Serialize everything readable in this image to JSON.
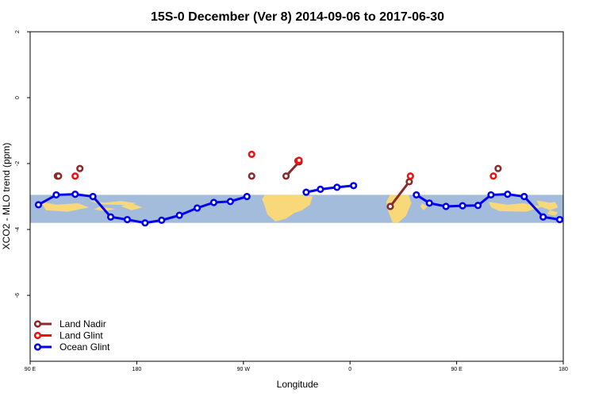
{
  "chart_data": {
    "type": "line",
    "title": "15S-0 December (Ver 8)   2014-09-06 to 2017-06-30",
    "xlabel": "Longitude",
    "ylabel": "XCO2 - MLO trend (ppm)",
    "xlim": [
      90,
      540
    ],
    "ylim": [
      -8,
      2
    ],
    "x_ticks": [
      {
        "value": 90,
        "label": "90 E"
      },
      {
        "value": 180,
        "label": "180"
      },
      {
        "value": 270,
        "label": "90 W"
      },
      {
        "value": 360,
        "label": "0"
      },
      {
        "value": 450,
        "label": "90 E"
      },
      {
        "value": 540,
        "label": "180"
      }
    ],
    "y_ticks": [
      {
        "value": 2,
        "label": "2"
      },
      {
        "value": 0,
        "label": "0"
      },
      {
        "value": -2,
        "label": "-2"
      },
      {
        "value": -4,
        "label": "-4"
      },
      {
        "value": -6,
        "label": "-6"
      }
    ],
    "legend_position": "bottom-left",
    "map_band": {
      "y_top": -2.95,
      "y_bottom": -3.8,
      "ocean_color": "#a4bcdc",
      "land_color": "#f8d878"
    },
    "series": [
      {
        "name": "Land Nadir",
        "color": "#8b2a2a",
        "segments": [
          [
            [
              132,
              -2.15
            ]
          ],
          [
            [
              277,
              -2.38
            ]
          ],
          [
            [
              306,
              -2.38
            ],
            [
              317,
              -1.95
            ]
          ],
          [
            [
              113,
              -2.38
            ]
          ],
          [
            [
              114,
              -2.38
            ]
          ],
          [
            [
              394,
              -3.3
            ],
            [
              410,
              -2.55
            ]
          ],
          [
            [
              485,
              -2.15
            ]
          ]
        ]
      },
      {
        "name": "Land Glint",
        "color": "#ee1111",
        "segments": [
          [
            [
              128,
              -2.38
            ]
          ],
          [
            [
              277,
              -1.72
            ]
          ],
          [
            [
              316,
              -1.92
            ],
            [
              317,
              -1.9
            ]
          ],
          [
            [
              411,
              -2.38
            ]
          ],
          [
            [
              481,
              -2.38
            ]
          ]
        ]
      },
      {
        "name": "Ocean Glint",
        "color": "#0000ee",
        "segments": [
          [
            [
              97,
              -3.25
            ],
            [
              112,
              -2.95
            ],
            [
              128,
              -2.93
            ],
            [
              143,
              -3.0
            ],
            [
              158,
              -3.62
            ],
            [
              172,
              -3.7
            ],
            [
              187,
              -3.8
            ],
            [
              201,
              -3.72
            ],
            [
              216,
              -3.57
            ],
            [
              231,
              -3.35
            ],
            [
              245,
              -3.18
            ],
            [
              259,
              -3.15
            ],
            [
              273,
              -3.0
            ]
          ],
          [
            [
              323,
              -2.87
            ],
            [
              335,
              -2.78
            ],
            [
              349,
              -2.72
            ],
            [
              363,
              -2.67
            ]
          ],
          [
            [
              416,
              -2.95
            ],
            [
              427,
              -3.2
            ],
            [
              441,
              -3.3
            ],
            [
              455,
              -3.28
            ],
            [
              468,
              -3.27
            ],
            [
              479,
              -2.95
            ],
            [
              493,
              -2.93
            ],
            [
              507,
              -3.0
            ],
            [
              523,
              -3.62
            ],
            [
              537,
              -3.7
            ]
          ]
        ]
      }
    ]
  }
}
